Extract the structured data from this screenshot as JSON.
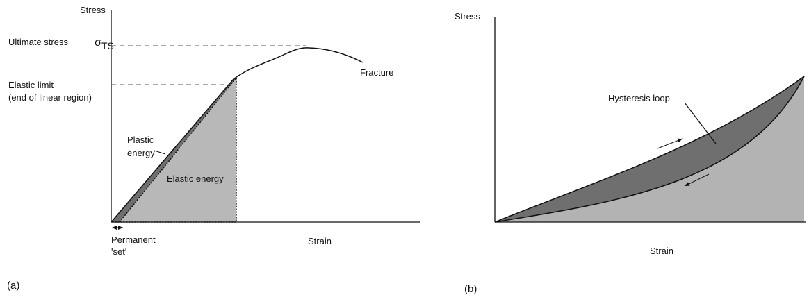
{
  "panel_a": {
    "y_axis_label": "Stress",
    "ultimate_stress": "Ultimate stress",
    "sigma": "σ",
    "sigma_subscript": "TS",
    "elastic_limit": "Elastic limit",
    "elastic_limit_note": "(end of linear region)",
    "fracture": "Fracture",
    "plastic_line1": "Plastic",
    "plastic_line2": "energy",
    "elastic_energy": "Elastic energy",
    "permanent_line1": "Permanent",
    "permanent_line2": "'set'",
    "x_axis_label": "Strain",
    "panel_label": "(a)"
  },
  "panel_b": {
    "y_axis_label": "Stress",
    "hysteresis": "Hysteresis loop",
    "x_axis_label": "Strain",
    "panel_label": "(b)"
  }
}
